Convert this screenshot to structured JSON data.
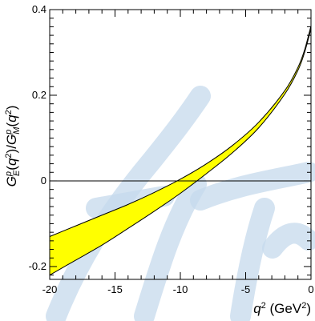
{
  "chart_data": {
    "type": "area",
    "title": "",
    "xlabel": "q² (GeV²)",
    "ylabel": "Gᴱᵖ(q²)/Gᴹᵖ(q²)",
    "xlim": [
      -20,
      0
    ],
    "ylim": [
      -0.23,
      0.4
    ],
    "x_ticks": [
      -20,
      -15,
      -10,
      -5,
      0
    ],
    "x_tick_labels": [
      "-20",
      "-15",
      "-10",
      "-5",
      "0"
    ],
    "y_ticks": [
      -0.2,
      0,
      0.2,
      0.4
    ],
    "y_tick_labels": [
      "-0.2",
      "0",
      "0.2",
      "0.4"
    ],
    "reference_line_y": 0,
    "band_color": "#ffff00",
    "band_edge_color": "#000000",
    "series": [
      {
        "x": [
          -20,
          -18,
          -16,
          -14,
          -12,
          -10,
          -8,
          -6,
          -4,
          -2,
          -1,
          -0.5,
          0
        ],
        "upper": [
          -0.13,
          -0.105,
          -0.08,
          -0.055,
          -0.027,
          0.004,
          0.04,
          0.083,
          0.137,
          0.211,
          0.265,
          0.305,
          0.362
        ],
        "lower": [
          -0.22,
          -0.185,
          -0.15,
          -0.111,
          -0.071,
          -0.029,
          0.017,
          0.066,
          0.124,
          0.203,
          0.258,
          0.299,
          0.355
        ]
      }
    ],
    "watermark_color": "#c5d9ec"
  }
}
